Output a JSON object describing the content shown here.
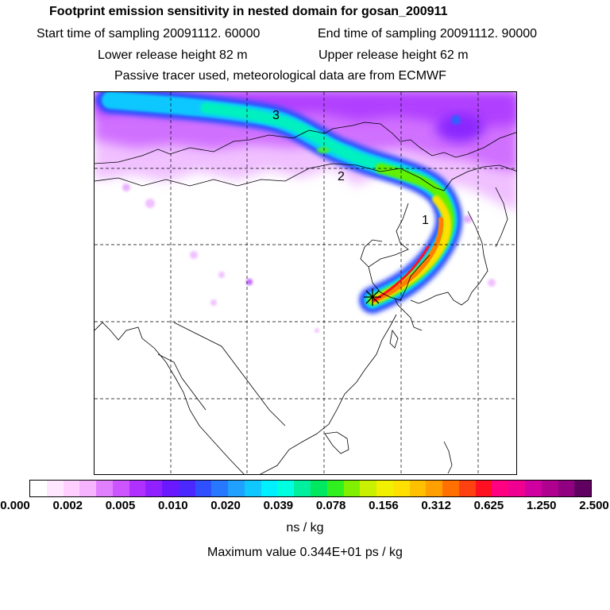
{
  "header": {
    "title": "Footprint emission sensitivity in nested domain for gosan_200911",
    "start": "Start time of sampling 20091112. 60000",
    "end": "End time of sampling 20091112. 90000",
    "lower": "Lower release height   82 m",
    "upper": "Upper release height   62 m",
    "tracer": "Passive tracer used, meteorological data are from ECMWF"
  },
  "map": {
    "day_labels": [
      "3",
      "2",
      "1"
    ],
    "release_marker": "star-marker"
  },
  "colorbar": {
    "colors": [
      "#ffffff",
      "#ffe8ff",
      "#ffd0ff",
      "#f6b4ff",
      "#e080ff",
      "#cc55ff",
      "#b030ff",
      "#9020ff",
      "#6a18ff",
      "#4a28ff",
      "#3050ff",
      "#2878ff",
      "#20a0ff",
      "#10c8ff",
      "#00f0ff",
      "#00ffe0",
      "#00f0a0",
      "#00e860",
      "#30f020",
      "#80f000",
      "#c8f000",
      "#f0f000",
      "#ffe000",
      "#ffc000",
      "#ffa000",
      "#ff7000",
      "#ff4010",
      "#ff1020",
      "#ff0080",
      "#f00090",
      "#d000a0",
      "#b00090",
      "#900080",
      "#600060"
    ],
    "tick_labels": [
      "0.000",
      "0.002",
      "0.005",
      "0.010",
      "0.020",
      "0.039",
      "0.078",
      "0.156",
      "0.312",
      "0.625",
      "1.250",
      "2.500"
    ],
    "unit": "ns / kg"
  },
  "max_value_text": "Maximum value  0.344E+01 ps / kg"
}
